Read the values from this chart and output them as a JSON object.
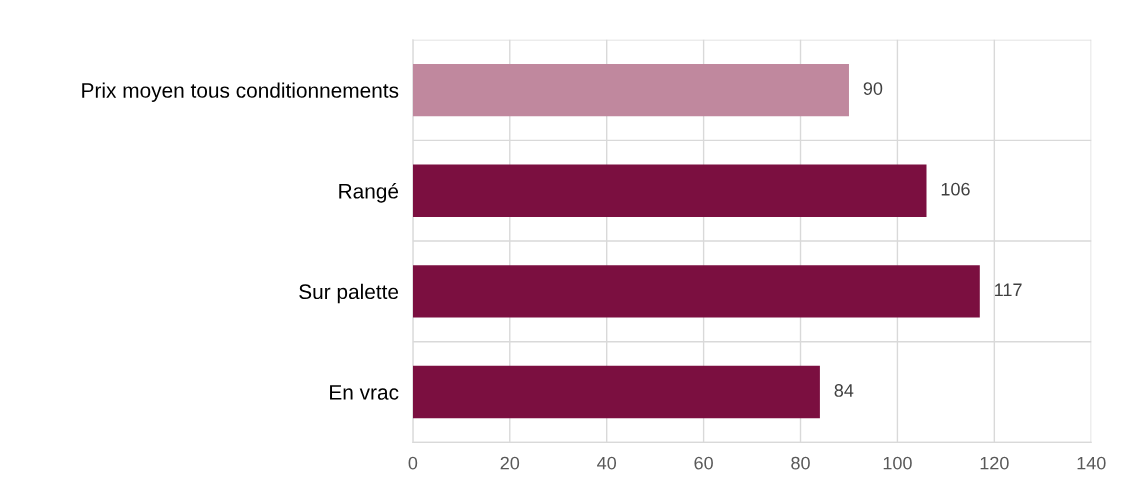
{
  "chart_data": {
    "type": "bar",
    "orientation": "horizontal",
    "categories": [
      "Prix moyen tous conditionnements",
      "Rangé",
      "Sur palette",
      "En vrac"
    ],
    "values": [
      90,
      106,
      117,
      84
    ],
    "colors": [
      "#c0889e",
      "#7b0f40",
      "#7b0f40",
      "#7b0f40"
    ],
    "xlim": [
      0,
      140
    ],
    "xticks": [
      0,
      20,
      40,
      60,
      80,
      100,
      120,
      140
    ],
    "grid": true,
    "data_labels": true,
    "legend": false
  }
}
